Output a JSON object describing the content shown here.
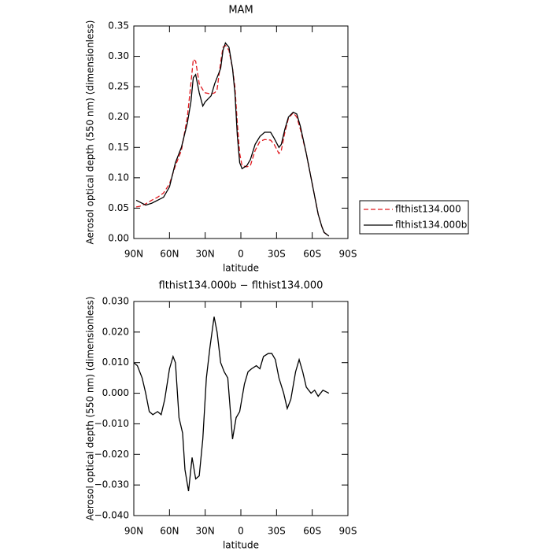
{
  "chart_data": [
    {
      "type": "line",
      "title": "MAM",
      "xlabel": "latitude",
      "ylabel": "Aerosol optical depth (550 nm) (dimensionless)",
      "legend": "right",
      "x": [
        88,
        85,
        80,
        75,
        70,
        65,
        60,
        55,
        50,
        45,
        42,
        40,
        38,
        35,
        32,
        30,
        25,
        22,
        20,
        17,
        15,
        13,
        10,
        7,
        5,
        3,
        1,
        -1,
        -5,
        -8,
        -12,
        -16,
        -20,
        -25,
        -28,
        -32,
        -34,
        -37,
        -40,
        -44,
        -47,
        -50,
        -55,
        -60,
        -65,
        -68,
        -70,
        -74
      ],
      "series": [
        {
          "name": "flthist134.000",
          "color": "#e0191f",
          "line_style": "dashed",
          "values": [
            0.052,
            0.053,
            0.057,
            0.063,
            0.068,
            0.075,
            0.09,
            0.12,
            0.145,
            0.2,
            0.255,
            0.295,
            0.292,
            0.255,
            0.245,
            0.24,
            0.238,
            0.24,
            0.245,
            0.29,
            0.315,
            0.318,
            0.31,
            0.28,
            0.25,
            0.19,
            0.14,
            0.12,
            0.118,
            0.12,
            0.145,
            0.16,
            0.163,
            0.162,
            0.155,
            0.14,
            0.145,
            0.175,
            0.198,
            0.207,
            0.2,
            0.18,
            0.14,
            0.09,
            0.04,
            0.02,
            0.01,
            0.004
          ]
        },
        {
          "name": "flthist134.000b",
          "color": "#000000",
          "line_style": "solid",
          "values": [
            0.063,
            0.06,
            0.055,
            0.058,
            0.063,
            0.068,
            0.085,
            0.125,
            0.15,
            0.19,
            0.225,
            0.265,
            0.27,
            0.24,
            0.218,
            0.225,
            0.235,
            0.255,
            0.265,
            0.28,
            0.31,
            0.322,
            0.315,
            0.28,
            0.24,
            0.17,
            0.125,
            0.115,
            0.12,
            0.13,
            0.155,
            0.168,
            0.175,
            0.175,
            0.165,
            0.15,
            0.155,
            0.18,
            0.2,
            0.208,
            0.205,
            0.185,
            0.14,
            0.09,
            0.04,
            0.02,
            0.01,
            0.004
          ]
        }
      ],
      "xlim": [
        90,
        -90
      ],
      "xticks": [
        {
          "value": 90,
          "label": "90N"
        },
        {
          "value": 60,
          "label": "60N"
        },
        {
          "value": 30,
          "label": "30N"
        },
        0,
        {
          "value": -30,
          "label": "30S"
        },
        {
          "value": -60,
          "label": "60S"
        },
        {
          "value": -90,
          "label": "90S"
        }
      ],
      "ylim": [
        0,
        0.35
      ],
      "yticks": [
        {
          "value": 0,
          "label": "0.00"
        },
        0.05,
        {
          "value": 0.1,
          "label": "0.10"
        },
        0.15,
        {
          "value": 0.2,
          "label": "0.20"
        },
        0.25,
        {
          "value": 0.3,
          "label": "0.30"
        },
        0.35
      ]
    },
    {
      "type": "line",
      "title": "flthist134.000b − flthist134.000",
      "xlabel": "latitude",
      "ylabel": "Aerosol optical depth (550 nm) (dimensionless)",
      "x": [
        90,
        87,
        83,
        80,
        77,
        74,
        70,
        67,
        64,
        60,
        57,
        55,
        52,
        49,
        47,
        44,
        41,
        38,
        35,
        32,
        29,
        26,
        22.5,
        20,
        17,
        14,
        11,
        9,
        7,
        4,
        1,
        -3,
        -6,
        -9,
        -13,
        -16,
        -19,
        -23,
        -26,
        -29,
        -32,
        -36,
        -39,
        -42,
        -46,
        -49,
        -52,
        -55,
        -59,
        -62,
        -65,
        -69,
        -74
      ],
      "series": [
        {
          "color": "#000000",
          "line_style": "solid",
          "values": [
            0.01,
            0.009,
            0.005,
            0.0,
            -0.006,
            -0.007,
            -0.006,
            -0.007,
            -0.002,
            0.008,
            0.012,
            0.01,
            -0.008,
            -0.013,
            -0.025,
            -0.032,
            -0.021,
            -0.028,
            -0.027,
            -0.015,
            0.005,
            0.015,
            0.025,
            0.02,
            0.01,
            0.007,
            0.005,
            -0.005,
            -0.015,
            -0.008,
            -0.006,
            0.003,
            0.007,
            0.008,
            0.009,
            0.008,
            0.012,
            0.013,
            0.013,
            0.011,
            0.005,
            0.0,
            -0.005,
            -0.002,
            0.007,
            0.011,
            0.007,
            0.002,
            0.0,
            0.001,
            -0.001,
            0.001,
            0.0
          ]
        }
      ],
      "xlim": [
        90,
        -90
      ],
      "xticks": [
        {
          "value": 90,
          "label": "90N"
        },
        {
          "value": 60,
          "label": "60N"
        },
        {
          "value": 30,
          "label": "30N"
        },
        0,
        {
          "value": -30,
          "label": "30S"
        },
        {
          "value": -60,
          "label": "60S"
        },
        {
          "value": -90,
          "label": "90S"
        }
      ],
      "ylim": [
        -0.04,
        0.03
      ],
      "yticks": [
        {
          "value": -0.04,
          "label": "−0.040"
        },
        {
          "value": -0.03,
          "label": "−0.030"
        },
        {
          "value": -0.02,
          "label": "−0.020"
        },
        {
          "value": -0.01,
          "label": "−0.010"
        },
        {
          "value": 0,
          "label": "0.000"
        },
        {
          "value": 0.01,
          "label": "0.010"
        },
        {
          "value": 0.02,
          "label": "0.020"
        },
        {
          "value": 0.03,
          "label": "0.030"
        }
      ]
    }
  ]
}
